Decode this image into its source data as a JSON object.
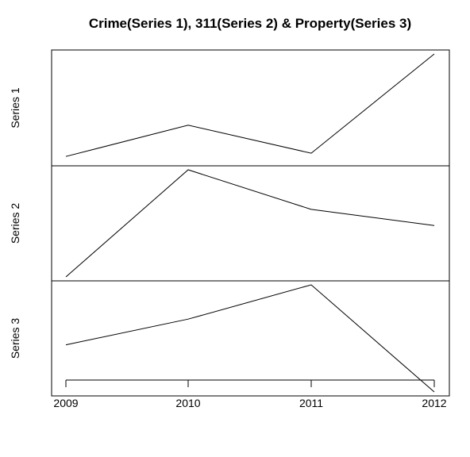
{
  "chart_data": {
    "type": "line",
    "title": "Crime(Series 1), 311(Series 2) & Property(Series 3)",
    "x": [
      2009,
      2010,
      2011,
      2012
    ],
    "x_tick_labels": [
      "2009",
      "2010",
      "2011",
      "2012"
    ],
    "series": [
      {
        "name": "Series 1",
        "values": [
          0.05,
          0.34,
          0.08,
          1.0
        ]
      },
      {
        "name": "Series 2",
        "values": [
          0.0,
          1.0,
          0.63,
          0.48
        ]
      },
      {
        "name": "Series 3",
        "values": [
          0.44,
          0.68,
          1.0,
          0.0
        ]
      }
    ],
    "grid": false,
    "legend": "none",
    "line_color": "#000000"
  }
}
